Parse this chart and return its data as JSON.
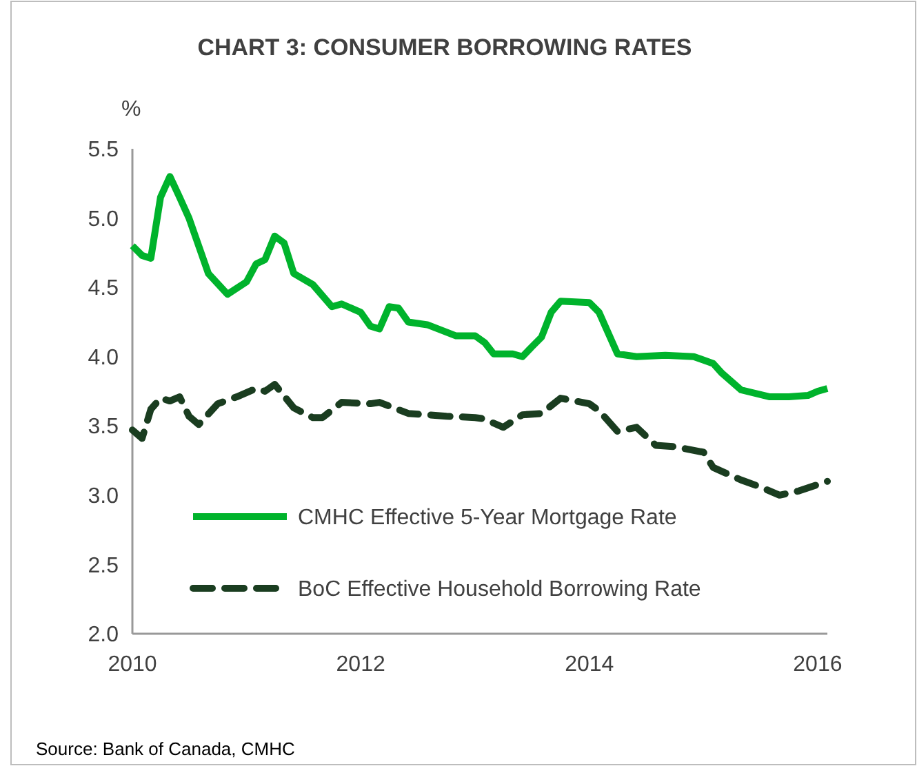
{
  "chart_data": {
    "type": "line",
    "title": "CHART 3: CONSUMER BORROWING RATES",
    "ylabel": "%",
    "annotations": [
      "Source: Bank of Canada, CMHC"
    ],
    "xlim": [
      "2010-01",
      "2016-02"
    ],
    "xticks": [
      "2010",
      "2012",
      "2014",
      "2016"
    ],
    "ylim": [
      2.0,
      5.5
    ],
    "yticks": [
      {
        "value": 2,
        "label": "2.0"
      },
      {
        "value": 2.5,
        "label": "2.5"
      },
      {
        "value": 3,
        "label": "3.0"
      },
      {
        "value": 3.5,
        "label": "3.5"
      },
      {
        "value": 4,
        "label": "4.0"
      },
      {
        "value": 4.5,
        "label": "4.5"
      },
      {
        "value": 5,
        "label": "5.0"
      },
      {
        "value": 5.5,
        "label": "5.5"
      }
    ],
    "grid": false,
    "legend": "bottom left",
    "series": [
      {
        "name": "CMHC Effective 5-Year Mortgage Rate",
        "color": "#00b32c",
        "line_style": "solid",
        "x": [
          "2010-01",
          "2010-02",
          "2010-03",
          "2010-04",
          "2010-05",
          "2010-06",
          "2010-07",
          "2010-09",
          "2010-11",
          "2011-01",
          "2011-02",
          "2011-03",
          "2011-04",
          "2011-05",
          "2011-06",
          "2011-08",
          "2011-10",
          "2011-11",
          "2012-01",
          "2012-02",
          "2012-03",
          "2012-04",
          "2012-05",
          "2012-06",
          "2012-08",
          "2012-11",
          "2013-01",
          "2013-02",
          "2013-03",
          "2013-05",
          "2013-06",
          "2013-07",
          "2013-08",
          "2013-09",
          "2013-10",
          "2014-01",
          "2014-02",
          "2014-04",
          "2014-06",
          "2014-09",
          "2014-12",
          "2015-02",
          "2015-03",
          "2015-05",
          "2015-08",
          "2015-10",
          "2015-12",
          "2016-01",
          "2016-02"
        ],
        "values": [
          4.8,
          4.73,
          4.71,
          5.15,
          5.3,
          5.15,
          5.0,
          4.6,
          4.45,
          4.54,
          4.67,
          4.7,
          4.87,
          4.82,
          4.6,
          4.52,
          4.36,
          4.38,
          4.32,
          4.22,
          4.2,
          4.36,
          4.35,
          4.25,
          4.23,
          4.15,
          4.15,
          4.1,
          4.02,
          4.02,
          4.0,
          4.07,
          4.14,
          4.32,
          4.4,
          4.39,
          4.32,
          4.02,
          4.0,
          4.01,
          4.0,
          3.95,
          3.88,
          3.76,
          3.71,
          3.71,
          3.72,
          3.75,
          3.77
        ]
      },
      {
        "name": "BoC Effective Household Borrowing Rate",
        "color": "#1a3d20",
        "line_style": "dashed",
        "x": [
          "2010-01",
          "2010-02",
          "2010-03",
          "2010-04",
          "2010-05",
          "2010-06",
          "2010-07",
          "2010-08",
          "2010-10",
          "2010-12",
          "2011-02",
          "2011-03",
          "2011-04",
          "2011-06",
          "2011-08",
          "2011-09",
          "2011-11",
          "2012-02",
          "2012-03",
          "2012-06",
          "2012-10",
          "2013-01",
          "2013-02",
          "2013-03",
          "2013-04",
          "2013-06",
          "2013-08",
          "2013-10",
          "2014-01",
          "2014-02",
          "2014-04",
          "2014-06",
          "2014-08",
          "2014-10",
          "2015-01",
          "2015-02",
          "2015-05",
          "2015-07",
          "2015-09",
          "2015-11",
          "2016-02"
        ],
        "values": [
          3.47,
          3.41,
          3.62,
          3.7,
          3.68,
          3.71,
          3.57,
          3.51,
          3.66,
          3.71,
          3.77,
          3.75,
          3.8,
          3.63,
          3.56,
          3.56,
          3.67,
          3.66,
          3.67,
          3.59,
          3.57,
          3.56,
          3.55,
          3.52,
          3.49,
          3.58,
          3.59,
          3.7,
          3.66,
          3.61,
          3.46,
          3.49,
          3.36,
          3.35,
          3.31,
          3.2,
          3.11,
          3.06,
          3.0,
          3.03,
          3.1
        ]
      }
    ]
  }
}
